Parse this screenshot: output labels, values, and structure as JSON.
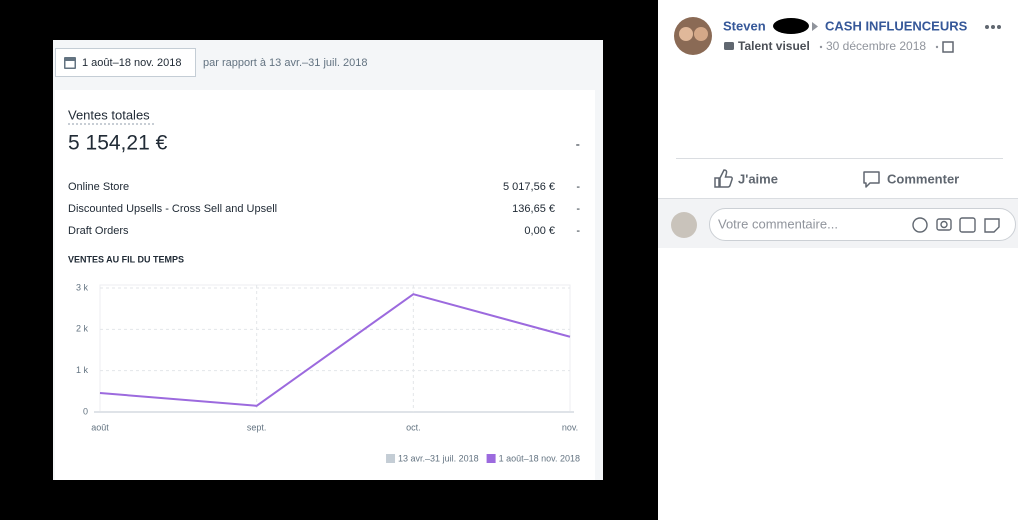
{
  "report": {
    "date_range": "1 août–18 nov. 2018",
    "comparison": "par rapport à 13 avr.–31 juil. 2018",
    "metric_title": "Ventes totales",
    "total": "5 154,21 €",
    "total_change": "-",
    "rows": [
      {
        "label": "Online Store",
        "amount": "5 017,56 €",
        "change": "-"
      },
      {
        "label": "Discounted Upsells - Cross Sell and Upsell",
        "amount": "136,65 €",
        "change": "-"
      },
      {
        "label": "Draft Orders",
        "amount": "0,00 €",
        "change": "-"
      }
    ]
  },
  "chart_data": {
    "type": "line",
    "title": "VENTES AU FIL DU TEMPS",
    "categories": [
      "août",
      "sept.",
      "oct.",
      "nov."
    ],
    "series": [
      {
        "name": "13 avr.–31 juil. 2018",
        "color": "#c4cdd5",
        "values": [
          null,
          null,
          null,
          null
        ]
      },
      {
        "name": "1 août–18 nov. 2018",
        "color": "#9c6ade",
        "values": [
          460,
          150,
          2850,
          1820
        ]
      }
    ],
    "ylim": [
      0,
      3000
    ],
    "yticks": [
      0,
      {
        "value": 1000,
        "label": "1 k"
      },
      {
        "value": 2000,
        "label": "2 k"
      },
      {
        "value": 3000,
        "label": "3 k"
      }
    ],
    "grid": true
  },
  "post": {
    "author": "Steven",
    "group": "CASH INFLUENCEURS",
    "badge": "Talent visuel",
    "date": "30 décembre 2018",
    "like": "J'aime",
    "comment": "Commenter",
    "comment_placeholder": "Votre commentaire..."
  }
}
